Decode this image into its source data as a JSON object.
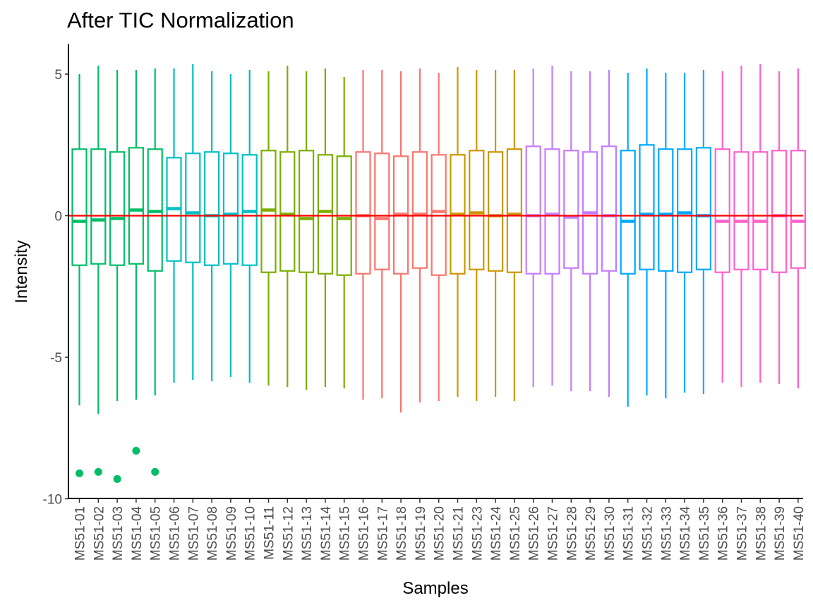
{
  "chart_data": {
    "type": "boxplot",
    "title": "After TIC Normalization",
    "xlabel": "Samples",
    "ylabel": "Intensity",
    "ylim": [
      -10,
      6
    ],
    "yticks": [
      5,
      0,
      -5,
      -10
    ],
    "ytick_labels": [
      "5",
      "0",
      "-5",
      "-10"
    ],
    "grid": false,
    "legend": "none",
    "reference_line": {
      "y": 0,
      "color": "#ff0000"
    },
    "categories": [
      "MS51-01",
      "MS51-02",
      "MS51-03",
      "MS51-04",
      "MS51-05",
      "MS51-06",
      "MS51-07",
      "MS51-08",
      "MS51-09",
      "MS51-10",
      "MS51-11",
      "MS51-12",
      "MS51-13",
      "MS51-14",
      "MS51-15",
      "MS51-16",
      "MS51-17",
      "MS51-18",
      "MS51-19",
      "MS51-20",
      "MS51-21",
      "MS51-23",
      "MS51-24",
      "MS51-25",
      "MS51-26",
      "MS51-27",
      "MS51-28",
      "MS51-29",
      "MS51-30",
      "MS51-31",
      "MS51-32",
      "MS51-33",
      "MS51-34",
      "MS51-35",
      "MS51-36",
      "MS51-37",
      "MS51-38",
      "MS51-39",
      "MS51-40"
    ],
    "boxes": [
      {
        "sample": "MS51-01",
        "color": "#00BE67",
        "min": -6.7,
        "q1": -1.75,
        "median": -0.2,
        "q3": 2.35,
        "max": 5.0,
        "outliers": [
          -9.1
        ]
      },
      {
        "sample": "MS51-02",
        "color": "#00BE67",
        "min": -7.0,
        "q1": -1.7,
        "median": -0.15,
        "q3": 2.35,
        "max": 5.3,
        "outliers": [
          -9.05
        ]
      },
      {
        "sample": "MS51-03",
        "color": "#00BE67",
        "min": -6.55,
        "q1": -1.75,
        "median": -0.1,
        "q3": 2.25,
        "max": 5.15,
        "outliers": [
          -9.3
        ]
      },
      {
        "sample": "MS51-04",
        "color": "#00BE67",
        "min": -6.5,
        "q1": -1.7,
        "median": 0.2,
        "q3": 2.4,
        "max": 5.15,
        "outliers": [
          -8.3
        ]
      },
      {
        "sample": "MS51-05",
        "color": "#00BE67",
        "min": -6.35,
        "q1": -1.95,
        "median": 0.15,
        "q3": 2.35,
        "max": 5.2,
        "outliers": [
          -9.05
        ]
      },
      {
        "sample": "MS51-06",
        "color": "#00BFC4",
        "min": -5.9,
        "q1": -1.6,
        "median": 0.25,
        "q3": 2.05,
        "max": 5.2,
        "outliers": []
      },
      {
        "sample": "MS51-07",
        "color": "#00BFC4",
        "min": -5.8,
        "q1": -1.65,
        "median": 0.1,
        "q3": 2.2,
        "max": 5.35,
        "outliers": []
      },
      {
        "sample": "MS51-08",
        "color": "#00BFC4",
        "min": -5.85,
        "q1": -1.75,
        "median": 0.0,
        "q3": 2.25,
        "max": 5.1,
        "outliers": []
      },
      {
        "sample": "MS51-09",
        "color": "#00BFC4",
        "min": -5.7,
        "q1": -1.7,
        "median": 0.05,
        "q3": 2.2,
        "max": 5.0,
        "outliers": []
      },
      {
        "sample": "MS51-10",
        "color": "#00BFC4",
        "min": -5.9,
        "q1": -1.75,
        "median": 0.15,
        "q3": 2.15,
        "max": 5.15,
        "outliers": []
      },
      {
        "sample": "MS51-11",
        "color": "#7CAE00",
        "min": -6.0,
        "q1": -2.0,
        "median": 0.2,
        "q3": 2.3,
        "max": 5.1,
        "outliers": []
      },
      {
        "sample": "MS51-12",
        "color": "#7CAE00",
        "min": -6.05,
        "q1": -1.95,
        "median": 0.05,
        "q3": 2.25,
        "max": 5.3,
        "outliers": []
      },
      {
        "sample": "MS51-13",
        "color": "#7CAE00",
        "min": -6.15,
        "q1": -2.0,
        "median": -0.1,
        "q3": 2.3,
        "max": 5.1,
        "outliers": []
      },
      {
        "sample": "MS51-14",
        "color": "#7CAE00",
        "min": -6.05,
        "q1": -2.05,
        "median": 0.15,
        "q3": 2.15,
        "max": 5.2,
        "outliers": []
      },
      {
        "sample": "MS51-15",
        "color": "#7CAE00",
        "min": -6.1,
        "q1": -2.1,
        "median": -0.1,
        "q3": 2.1,
        "max": 4.9,
        "outliers": []
      },
      {
        "sample": "MS51-16",
        "color": "#F8766D",
        "min": -6.5,
        "q1": -2.05,
        "median": 0.0,
        "q3": 2.25,
        "max": 5.15,
        "outliers": []
      },
      {
        "sample": "MS51-17",
        "color": "#F8766D",
        "min": -6.45,
        "q1": -1.9,
        "median": -0.1,
        "q3": 2.2,
        "max": 5.15,
        "outliers": []
      },
      {
        "sample": "MS51-18",
        "color": "#F8766D",
        "min": -6.95,
        "q1": -2.05,
        "median": 0.05,
        "q3": 2.1,
        "max": 5.1,
        "outliers": []
      },
      {
        "sample": "MS51-19",
        "color": "#F8766D",
        "min": -6.6,
        "q1": -1.85,
        "median": 0.05,
        "q3": 2.25,
        "max": 5.2,
        "outliers": []
      },
      {
        "sample": "MS51-20",
        "color": "#F8766D",
        "min": -6.55,
        "q1": -2.1,
        "median": 0.15,
        "q3": 2.15,
        "max": 5.05,
        "outliers": []
      },
      {
        "sample": "MS51-21",
        "color": "#CD9600",
        "min": -6.4,
        "q1": -2.05,
        "median": 0.05,
        "q3": 2.15,
        "max": 5.25,
        "outliers": []
      },
      {
        "sample": "MS51-23",
        "color": "#CD9600",
        "min": -6.55,
        "q1": -1.9,
        "median": 0.1,
        "q3": 2.3,
        "max": 5.15,
        "outliers": []
      },
      {
        "sample": "MS51-24",
        "color": "#CD9600",
        "min": -6.4,
        "q1": -1.95,
        "median": 0.0,
        "q3": 2.25,
        "max": 5.15,
        "outliers": []
      },
      {
        "sample": "MS51-25",
        "color": "#CD9600",
        "min": -6.55,
        "q1": -2.0,
        "median": 0.05,
        "q3": 2.35,
        "max": 5.15,
        "outliers": []
      },
      {
        "sample": "MS51-26",
        "color": "#C77CFF",
        "min": -6.05,
        "q1": -2.05,
        "median": 0.0,
        "q3": 2.45,
        "max": 5.2,
        "outliers": []
      },
      {
        "sample": "MS51-27",
        "color": "#C77CFF",
        "min": -6.0,
        "q1": -2.05,
        "median": 0.05,
        "q3": 2.35,
        "max": 5.3,
        "outliers": []
      },
      {
        "sample": "MS51-28",
        "color": "#C77CFF",
        "min": -6.2,
        "q1": -1.85,
        "median": -0.05,
        "q3": 2.3,
        "max": 5.1,
        "outliers": []
      },
      {
        "sample": "MS51-29",
        "color": "#C77CFF",
        "min": -6.2,
        "q1": -2.05,
        "median": 0.1,
        "q3": 2.25,
        "max": 5.1,
        "outliers": []
      },
      {
        "sample": "MS51-30",
        "color": "#C77CFF",
        "min": -6.4,
        "q1": -1.95,
        "median": 0.0,
        "q3": 2.45,
        "max": 5.15,
        "outliers": []
      },
      {
        "sample": "MS51-31",
        "color": "#00A9FF",
        "min": -6.75,
        "q1": -2.05,
        "median": -0.2,
        "q3": 2.3,
        "max": 5.05,
        "outliers": []
      },
      {
        "sample": "MS51-32",
        "color": "#00A9FF",
        "min": -6.35,
        "q1": -1.9,
        "median": 0.05,
        "q3": 2.5,
        "max": 5.2,
        "outliers": []
      },
      {
        "sample": "MS51-33",
        "color": "#00A9FF",
        "min": -6.45,
        "q1": -1.95,
        "median": 0.05,
        "q3": 2.35,
        "max": 5.05,
        "outliers": []
      },
      {
        "sample": "MS51-34",
        "color": "#00A9FF",
        "min": -6.25,
        "q1": -2.0,
        "median": 0.1,
        "q3": 2.35,
        "max": 5.05,
        "outliers": []
      },
      {
        "sample": "MS51-35",
        "color": "#00A9FF",
        "min": -6.3,
        "q1": -1.9,
        "median": 0.0,
        "q3": 2.4,
        "max": 5.15,
        "outliers": []
      },
      {
        "sample": "MS51-36",
        "color": "#FF61CC",
        "min": -5.9,
        "q1": -2.0,
        "median": -0.2,
        "q3": 2.35,
        "max": 5.1,
        "outliers": []
      },
      {
        "sample": "MS51-37",
        "color": "#FF61CC",
        "min": -6.05,
        "q1": -1.9,
        "median": -0.2,
        "q3": 2.25,
        "max": 5.3,
        "outliers": []
      },
      {
        "sample": "MS51-38",
        "color": "#FF61CC",
        "min": -5.9,
        "q1": -1.9,
        "median": -0.2,
        "q3": 2.25,
        "max": 5.35,
        "outliers": []
      },
      {
        "sample": "MS51-39",
        "color": "#FF61CC",
        "min": -5.95,
        "q1": -2.0,
        "median": 0.0,
        "q3": 2.3,
        "max": 5.1,
        "outliers": []
      },
      {
        "sample": "MS51-40",
        "color": "#FF61CC",
        "min": -6.1,
        "q1": -1.85,
        "median": -0.2,
        "q3": 2.3,
        "max": 5.2,
        "outliers": []
      }
    ]
  }
}
